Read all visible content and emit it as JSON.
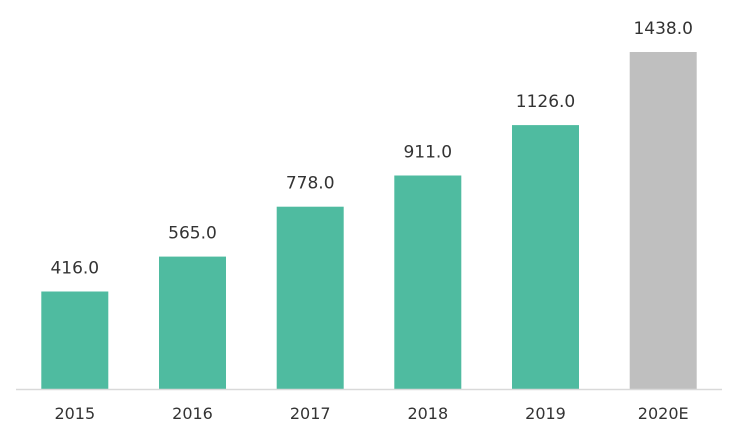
{
  "chart_data": {
    "type": "bar",
    "title": "",
    "xlabel": "",
    "ylabel": "",
    "categories": [
      "2015",
      "2016",
      "2017",
      "2018",
      "2019",
      "2020E"
    ],
    "values": [
      416.0,
      565.0,
      778.0,
      911.0,
      1126.0,
      1438.0
    ],
    "value_labels": [
      "416.0",
      "565.0",
      "778.0",
      "911.0",
      "1126.0",
      "1438.0"
    ],
    "forecast": [
      false,
      false,
      false,
      false,
      false,
      true
    ],
    "ylim": [
      0,
      1438
    ],
    "grid": false,
    "legend": "none",
    "colors": {
      "actual": "#4fbba0",
      "forecast": "#bfbfbf",
      "axis": "#d9d9d9",
      "text": "#333333"
    }
  }
}
